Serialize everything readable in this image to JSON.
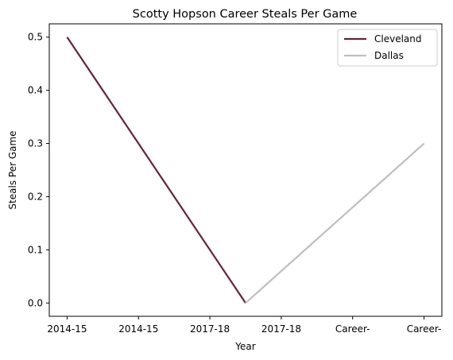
{
  "chart_data": {
    "type": "line",
    "title": "Scotty Hopson Career Steals Per Game",
    "xlabel": "Year",
    "ylabel": "Steals Per Game",
    "categories": [
      "2014-15",
      "2014-15",
      "2017-18",
      "2017-18",
      "Career-",
      "Career-"
    ],
    "x_positions": [
      0,
      1,
      2,
      3,
      4,
      5
    ],
    "ylim": [
      -0.025,
      0.525
    ],
    "yticks": [
      0.0,
      0.1,
      0.2,
      0.3,
      0.4,
      0.5
    ],
    "ytick_labels": [
      "0.0",
      "0.1",
      "0.2",
      "0.3",
      "0.4",
      "0.5"
    ],
    "grid": false,
    "legend_position": "top-right",
    "series": [
      {
        "name": "Cleveland",
        "color": "#6a2139",
        "x": [
          0,
          2.5
        ],
        "values": [
          0.5,
          0.0
        ]
      },
      {
        "name": "Dallas",
        "color": "#bfbfbf",
        "x": [
          2.5,
          5
        ],
        "values": [
          0.0,
          0.3
        ]
      }
    ]
  }
}
